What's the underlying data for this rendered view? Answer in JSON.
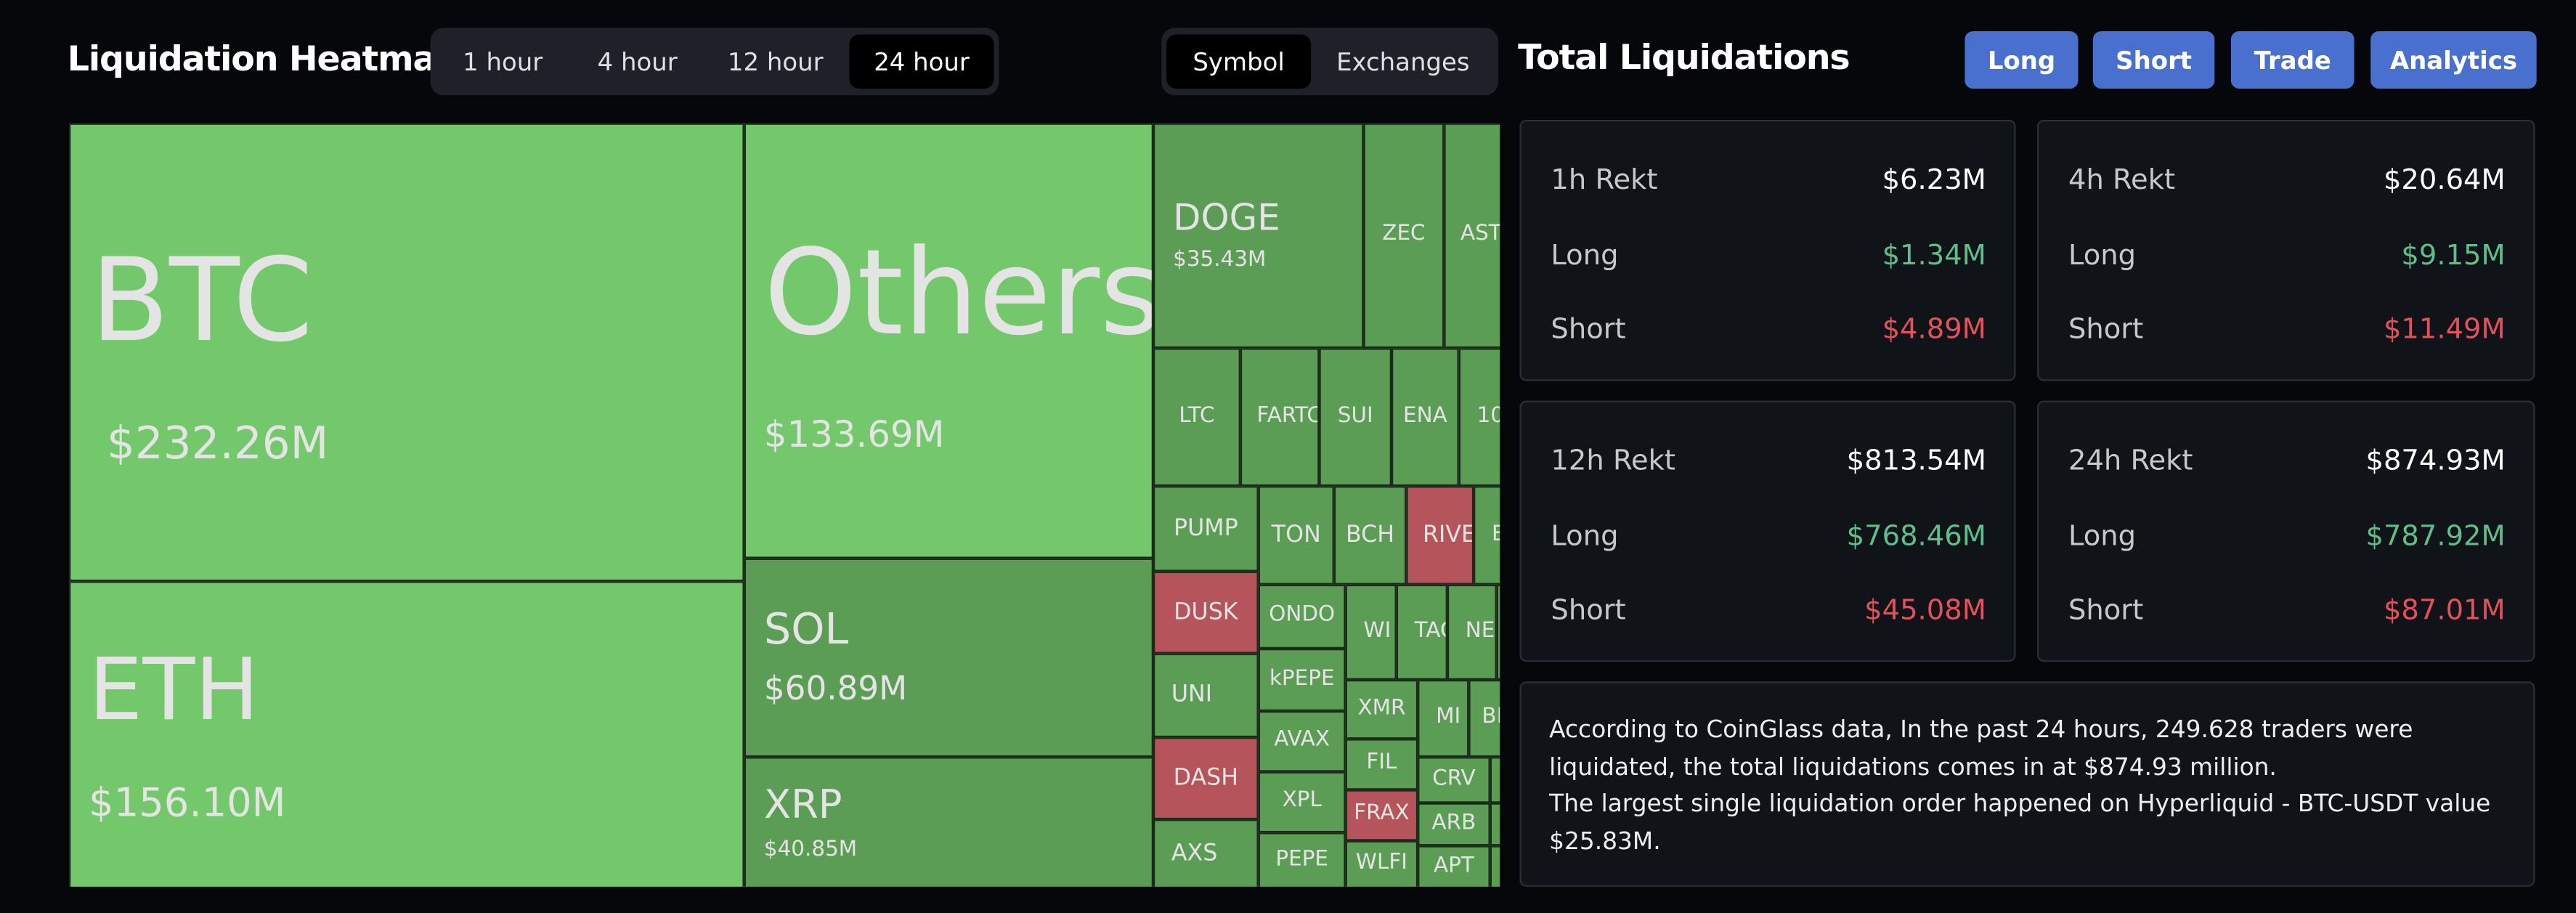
{
  "header": {
    "title": "Liquidation Heatmap",
    "time_tabs": [
      "1 hour",
      "4 hour",
      "12 hour",
      "24 hour"
    ],
    "view_tabs": [
      "Symbol",
      "Exchanges"
    ]
  },
  "heatmap": {
    "tiles": [
      {
        "name": "BTC",
        "value": "$232.26M",
        "color": "#73c86b"
      },
      {
        "name": "ETH",
        "value": "$156.10M",
        "color": "#73c86b"
      },
      {
        "name": "Others",
        "value": "$133.69M",
        "color": "#73c86b"
      },
      {
        "name": "SOL",
        "value": "$60.89M",
        "color": "#5c9d55"
      },
      {
        "name": "XRP",
        "value": "$40.85M",
        "color": "#5c9d55"
      },
      {
        "name": "DOGE",
        "value": "$35.43M",
        "color": "#5c9d55"
      },
      {
        "name": "ZEC",
        "color": "#5c9d55"
      },
      {
        "name": "AST",
        "color": "#5c9d55"
      },
      {
        "name": "LTC",
        "color": "#5c9d55"
      },
      {
        "name": "FARTC",
        "color": "#5c9d55"
      },
      {
        "name": "SUI",
        "color": "#5c9d55"
      },
      {
        "name": "ENA",
        "color": "#5c9d55"
      },
      {
        "name": "10",
        "color": "#5c9d55"
      },
      {
        "name": "PUMP",
        "color": "#5c9d55"
      },
      {
        "name": "TON",
        "color": "#5c9d55"
      },
      {
        "name": "BCH",
        "color": "#5c9d55"
      },
      {
        "name": "RIVE",
        "color": "#b5545a"
      },
      {
        "name": "E",
        "color": "#5c9d55"
      },
      {
        "name": "DUSK",
        "color": "#b5545a"
      },
      {
        "name": "UNI",
        "color": "#5c9d55"
      },
      {
        "name": "DASH",
        "color": "#b5545a"
      },
      {
        "name": "AXS",
        "color": "#5c9d55"
      },
      {
        "name": "ONDO",
        "color": "#5c9d55"
      },
      {
        "name": "kPEPE",
        "color": "#5c9d55"
      },
      {
        "name": "AVAX",
        "color": "#5c9d55"
      },
      {
        "name": "XPL",
        "color": "#5c9d55"
      },
      {
        "name": "PEPE",
        "color": "#5c9d55"
      },
      {
        "name": "WI",
        "color": "#5c9d55"
      },
      {
        "name": "TAC",
        "color": "#5c9d55"
      },
      {
        "name": "NE",
        "color": "#5c9d55"
      },
      {
        "name": "XMR",
        "color": "#5c9d55"
      },
      {
        "name": "MI",
        "color": "#5c9d55"
      },
      {
        "name": "BI",
        "color": "#5c9d55"
      },
      {
        "name": "FIL",
        "color": "#5c9d55"
      },
      {
        "name": "FRAX",
        "color": "#b5545a"
      },
      {
        "name": "WLFI",
        "color": "#5c9d55"
      },
      {
        "name": "CRV",
        "color": "#5c9d55"
      },
      {
        "name": "ARB",
        "color": "#5c9d55"
      },
      {
        "name": "APT",
        "color": "#5c9d55"
      }
    ]
  },
  "panel": {
    "title": "Total Liquidations",
    "buttons": [
      "Long",
      "Short",
      "Trade",
      "Analytics"
    ],
    "cards": [
      {
        "title": "1h Rekt",
        "total": "$6.23M",
        "rows": [
          {
            "label": "Long",
            "value": "$1.34M"
          },
          {
            "label": "Short",
            "value": "$4.89M"
          }
        ]
      },
      {
        "title": "4h Rekt",
        "total": "$20.64M",
        "rows": [
          {
            "label": "Long",
            "value": "$9.15M"
          },
          {
            "label": "Short",
            "value": "$11.49M"
          }
        ]
      },
      {
        "title": "12h Rekt",
        "total": "$813.54M",
        "rows": [
          {
            "label": "Long",
            "value": "$768.46M"
          },
          {
            "label": "Short",
            "value": "$45.08M"
          }
        ]
      },
      {
        "title": "24h Rekt",
        "total": "$874.93M",
        "rows": [
          {
            "label": "Long",
            "value": "$787.92M"
          },
          {
            "label": "Short",
            "value": "$87.01M"
          }
        ]
      }
    ],
    "summary": [
      "According to CoinGlass data, In the past 24 hours, 249.628 traders were liquidated, the total liquidations comes in at $874.93 million.",
      "The largest single liquidation order happened on Hyperliquid - BTC-USDT value $25.83M."
    ]
  }
}
